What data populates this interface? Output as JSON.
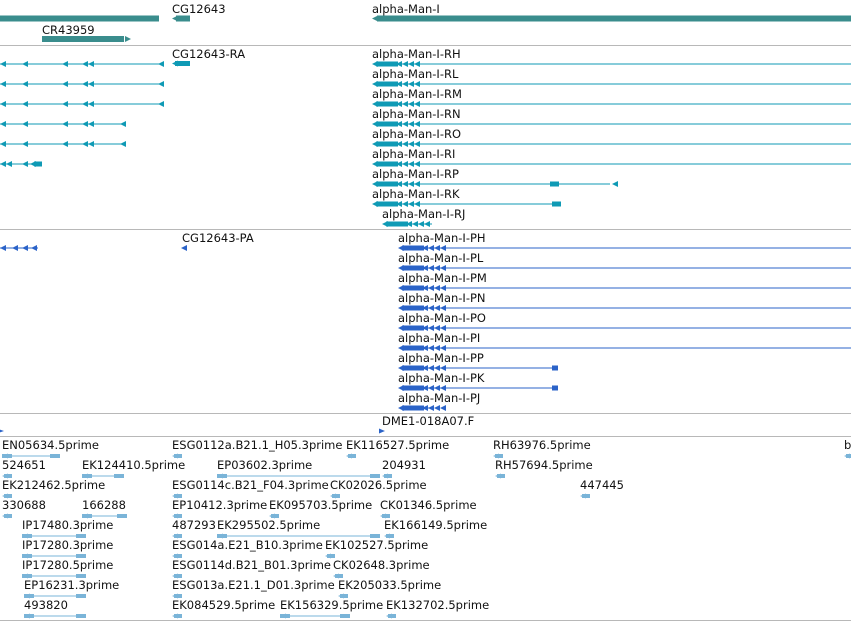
{
  "colors": {
    "gene": "#3a8d8d",
    "rna": "#0f9ab5",
    "protein": "#2b63c8",
    "est": "#7ab4d8"
  },
  "gene_track": [
    {
      "label": "CG12643",
      "strand": "-"
    },
    {
      "label": "CR43959",
      "strand": "+"
    },
    {
      "label": "alpha-Man-I",
      "strand": "-"
    }
  ],
  "transcript_track": {
    "left_gene": "CG12643-RA",
    "isoforms": [
      "alpha-Man-I-RH",
      "alpha-Man-I-RL",
      "alpha-Man-I-RM",
      "alpha-Man-I-RN",
      "alpha-Man-I-RO",
      "alpha-Man-I-RI",
      "alpha-Man-I-RP",
      "alpha-Man-I-RK",
      "alpha-Man-I-RJ"
    ]
  },
  "protein_track": {
    "left_gene": "CG12643-PA",
    "isoforms": [
      "alpha-Man-I-PH",
      "alpha-Man-I-PL",
      "alpha-Man-I-PM",
      "alpha-Man-I-PN",
      "alpha-Man-I-PO",
      "alpha-Man-I-PI",
      "alpha-Man-I-PP",
      "alpha-Man-I-PK",
      "alpha-Man-I-PJ"
    ]
  },
  "probe_track": {
    "label": "DME1-018A07.F"
  },
  "est_track": [
    "EN05634.5prime",
    "ESG0112a.B21.1_H05.3prime",
    "EK116527.5prime",
    "RH63976.5prime",
    "b",
    "524651",
    "EK124410.5prime",
    "EP03602.3prime",
    "204931",
    "RH57694.5prime",
    "EK212462.5prime",
    "ESG0114c.B21_F04.3prime",
    "CK02026.5prime",
    "447445",
    "330688",
    "166288",
    "EP10412.3prime",
    "EK095703.5prime",
    "CK01346.5prime",
    "IP17480.3prime",
    "487293",
    "EK295502.5prime",
    "EK166149.5prime",
    "IP17280.3prime",
    "ESG014a.E21_B10.3prime",
    "EK102527.5prime",
    "IP17280.5prime",
    "ESG0114d.B21_B01.3prime",
    "CK02648.3prime",
    "EP16231.3prime",
    "ESG013a.E21.1_D01.3prime",
    "EK205033.5prime",
    "493820",
    "EK084529.5prime",
    "EK156329.5prime",
    "EK132702.5prime"
  ]
}
